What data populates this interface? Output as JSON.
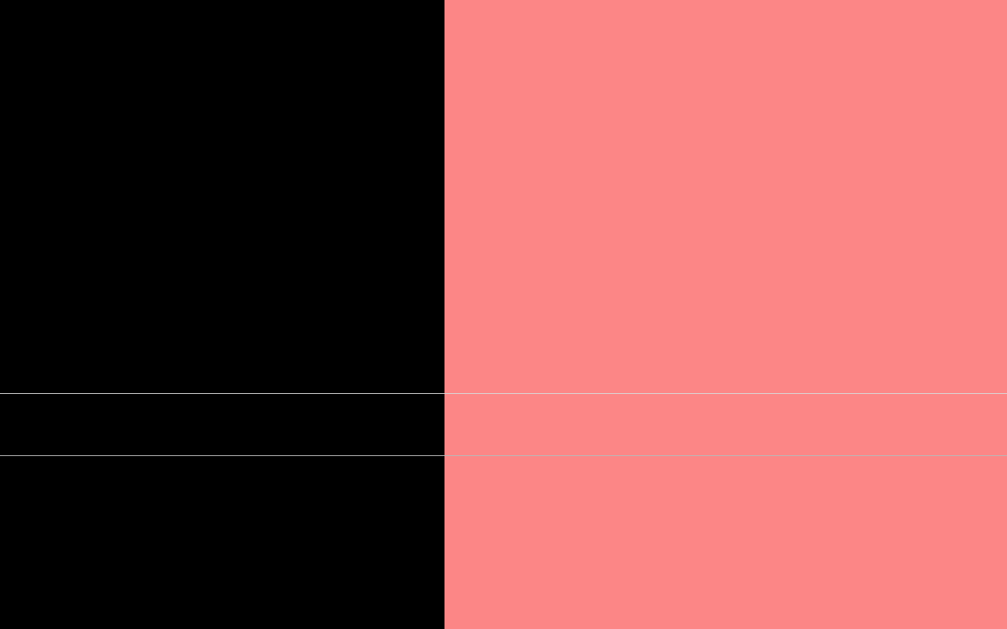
{
  "colors": {
    "left_pane": "#000000",
    "right_pane": "#fc8686",
    "divider_top": "#d8d8d8",
    "divider_bottom": "#b8b8b8"
  }
}
